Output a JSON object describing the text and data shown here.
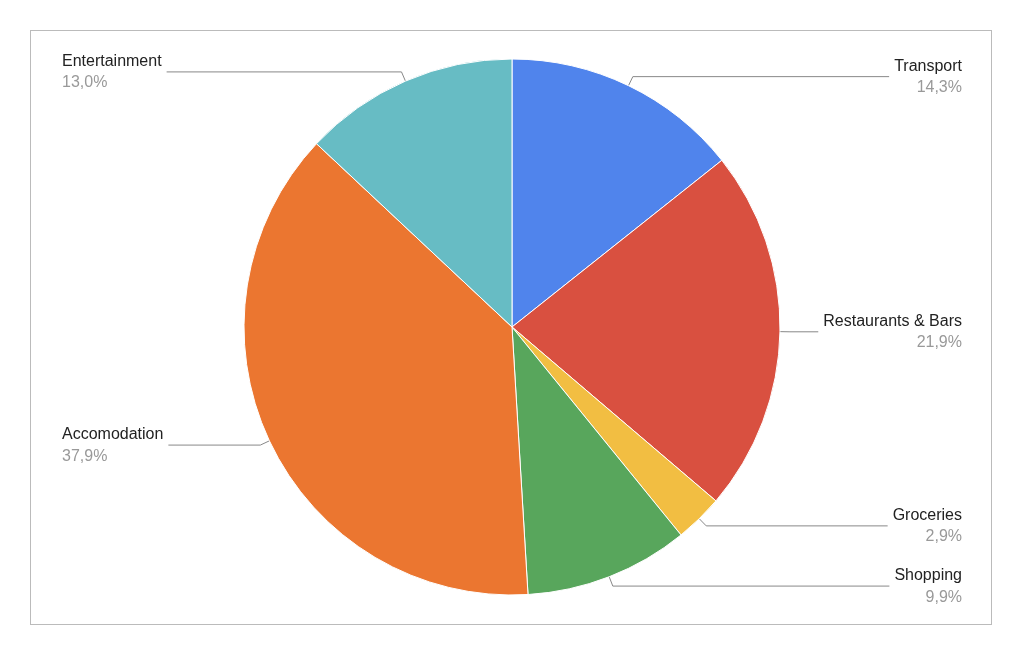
{
  "chart_data": {
    "type": "pie",
    "categories": [
      "Transport",
      "Restaurants & Bars",
      "Groceries",
      "Shopping",
      "Accomodation",
      "Entertainment"
    ],
    "values": [
      14.3,
      21.9,
      2.9,
      9.9,
      37.9,
      13.0
    ],
    "colors": [
      "#5084ec",
      "#d95040",
      "#f2be42",
      "#58a65c",
      "#eb7630",
      "#67bcc4"
    ],
    "value_labels": [
      "14,3%",
      "21,9%",
      "2,9%",
      "9,9%",
      "37,9%",
      "13,0%"
    ],
    "legend": false
  }
}
